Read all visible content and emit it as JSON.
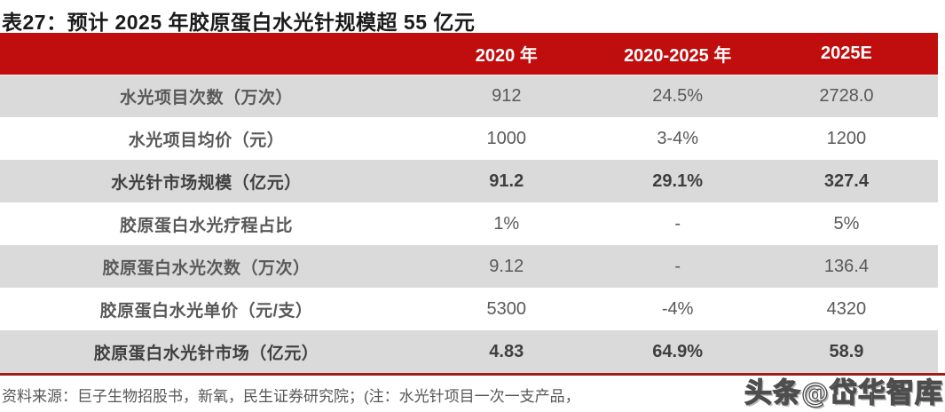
{
  "title": "表27：预计 2025 年胶原蛋白水光针规模超 55 亿元",
  "table": {
    "columns": [
      "",
      "2020 年",
      "2020-2025 年",
      "2025E"
    ],
    "rows": [
      {
        "label": "水光项目次数（万次）",
        "v2020": "912",
        "cagr": "24.5%",
        "v2025": "2728.0"
      },
      {
        "label": "水光项目均价（元）",
        "v2020": "1000",
        "cagr": "3-4%",
        "v2025": "1200"
      },
      {
        "label": "水光针市场规模（亿元）",
        "v2020": "91.2",
        "cagr": "29.1%",
        "v2025": "327.4"
      },
      {
        "label": "胶原蛋白水光疗程占比",
        "v2020": "1%",
        "cagr": "-",
        "v2025": "5%"
      },
      {
        "label": "胶原蛋白水光次数（万次）",
        "v2020": "9.12",
        "cagr": "-",
        "v2025": "136.4"
      },
      {
        "label": "胶原蛋白水光单价（元/支）",
        "v2020": "5300",
        "cagr": "-4%",
        "v2025": "4320"
      },
      {
        "label": "胶原蛋白水光针市场（亿元）",
        "v2020": "4.83",
        "cagr": "64.9%",
        "v2025": "58.9"
      }
    ]
  },
  "footer": {
    "source_note": "资料来源：巨子生物招股书，新氧，民生证券研究院；(注：水光针项目一次一支产品，"
  },
  "watermark": "头条@岱华智库",
  "colors": {
    "header_red": "#C00D0D",
    "row_gray": "#DADADA",
    "rule_dark_red": "#9C1D1D",
    "text_gray": "#595959",
    "title_black": "#1b1b1b"
  }
}
